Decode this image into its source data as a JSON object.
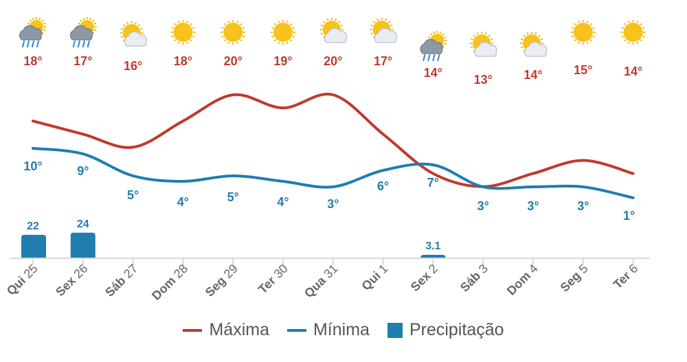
{
  "chart_data": {
    "type": "line",
    "categories": [
      {
        "day": "Qui",
        "num": "25"
      },
      {
        "day": "Sex",
        "num": "26"
      },
      {
        "day": "Sáb",
        "num": "27"
      },
      {
        "day": "Dom",
        "num": "28"
      },
      {
        "day": "Seg",
        "num": "29"
      },
      {
        "day": "Ter",
        "num": "30"
      },
      {
        "day": "Qua",
        "num": "31"
      },
      {
        "day": "Qui",
        "num": "1"
      },
      {
        "day": "Sex",
        "num": "2"
      },
      {
        "day": "Sáb",
        "num": "3"
      },
      {
        "day": "Dom",
        "num": "4"
      },
      {
        "day": "Seg",
        "num": "5"
      },
      {
        "day": "Ter",
        "num": "6"
      }
    ],
    "icons": [
      "rain-cloud-icon",
      "rain-cloud-icon",
      "partly-cloudy-icon",
      "sun-icon",
      "sun-icon",
      "sun-icon",
      "partly-cloudy-icon",
      "partly-cloudy-icon",
      "rain-cloud-icon",
      "partly-cloudy-icon",
      "partly-cloudy-icon",
      "sun-icon",
      "sun-icon"
    ],
    "series": [
      {
        "name": "Máxima",
        "color": "#c0392b",
        "unit": "°",
        "values": [
          18,
          17,
          16,
          18,
          20,
          19,
          20,
          17,
          14,
          13,
          14,
          15,
          14
        ]
      },
      {
        "name": "Mínima",
        "color": "#1f7db0",
        "unit": "°",
        "values": [
          10,
          9,
          5,
          4,
          5,
          4,
          3,
          6,
          7,
          3,
          3,
          3,
          1
        ]
      }
    ],
    "precipitation": {
      "name": "Precipitação",
      "color": "#1f7db0",
      "values": [
        22,
        24,
        null,
        null,
        null,
        null,
        null,
        null,
        3.1,
        null,
        null,
        null,
        null
      ],
      "labels": [
        "22",
        "24",
        "",
        "",
        "",
        "",
        "",
        "",
        "3.1",
        "",
        "",
        "",
        ""
      ]
    },
    "grid": false,
    "legend_position": "bottom-center"
  },
  "legend": {
    "max_label": "Máxima",
    "min_label": "Mínima",
    "precip_label": "Precipitação"
  }
}
